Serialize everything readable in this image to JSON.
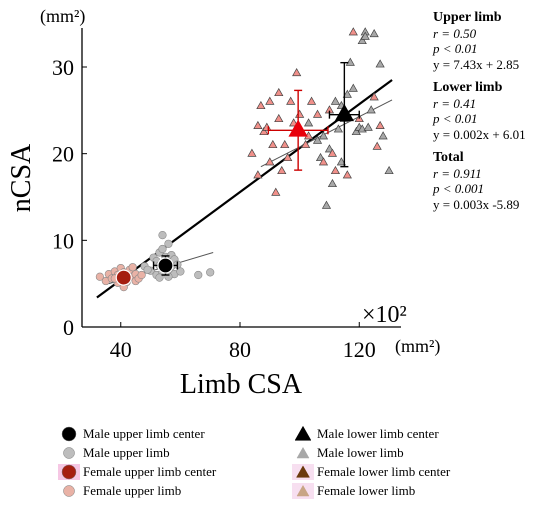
{
  "chart_data": {
    "type": "scatter",
    "title": "",
    "xlabel": "Limb CSA",
    "ylabel": "nCSA",
    "x_unit": "(mm²)",
    "y_unit": "(mm²)",
    "x_multiplier": "×10²",
    "xlim": [
      27,
      134
    ],
    "ylim": [
      0,
      34.5
    ],
    "x_ticks": [
      "40",
      "80",
      "120"
    ],
    "y_ticks": [
      "0",
      "10",
      "20",
      "30"
    ],
    "grid": false,
    "legend_position": "bottom",
    "series": [
      {
        "name": "Male upper limb",
        "marker": "circle",
        "color": "#bdbdbd",
        "points": [
          [
            48,
            7.0
          ],
          [
            50,
            6.5
          ],
          [
            51,
            8.0
          ],
          [
            52,
            6.0
          ],
          [
            52,
            7.6
          ],
          [
            53,
            8.6
          ],
          [
            53,
            7.1
          ],
          [
            54,
            6.3
          ],
          [
            54,
            9.0
          ],
          [
            55,
            7.4
          ],
          [
            55,
            8.1
          ],
          [
            56,
            6.6
          ],
          [
            56,
            9.6
          ],
          [
            57,
            7.0
          ],
          [
            57,
            8.3
          ],
          [
            58,
            6.1
          ],
          [
            58,
            7.8
          ],
          [
            59,
            7.2
          ],
          [
            60,
            6.4
          ],
          [
            54,
            10.6
          ],
          [
            53,
            5.7
          ],
          [
            49,
            6.6
          ],
          [
            66,
            6.0
          ],
          [
            70,
            6.3
          ],
          [
            56,
            5.8
          ]
        ]
      },
      {
        "name": "Female upper limb",
        "marker": "circle",
        "color": "#e9b2a6",
        "points": [
          [
            33,
            5.8
          ],
          [
            35,
            5.3
          ],
          [
            36,
            6.1
          ],
          [
            37,
            5.6
          ],
          [
            38,
            6.4
          ],
          [
            39,
            5.1
          ],
          [
            39,
            6.0
          ],
          [
            40,
            6.8
          ],
          [
            40,
            5.5
          ],
          [
            41,
            4.6
          ],
          [
            41,
            6.3
          ],
          [
            42,
            5.9
          ],
          [
            42,
            5.2
          ],
          [
            43,
            6.6
          ],
          [
            44,
            5.8
          ],
          [
            45,
            5.3
          ],
          [
            45,
            6.1
          ],
          [
            46,
            5.6
          ],
          [
            47,
            6.0
          ],
          [
            38,
            5.6
          ],
          [
            44,
            6.9
          ]
        ]
      },
      {
        "name": "Male lower limb",
        "marker": "triangle",
        "color": "#a8a8a8",
        "points": [
          [
            103,
            23.5
          ],
          [
            106,
            21.5
          ],
          [
            107,
            19.5
          ],
          [
            108,
            22.0
          ],
          [
            110,
            20.5
          ],
          [
            111,
            16.5
          ],
          [
            112,
            26.0
          ],
          [
            113,
            22.8
          ],
          [
            114,
            25.5
          ],
          [
            115,
            24.0
          ],
          [
            116,
            26.8
          ],
          [
            117,
            30.5
          ],
          [
            118,
            27.5
          ],
          [
            119,
            22.5
          ],
          [
            120,
            23.0
          ],
          [
            121,
            33.0
          ],
          [
            121,
            22.8
          ],
          [
            122,
            34.0
          ],
          [
            123,
            23.0
          ],
          [
            124,
            25.0
          ],
          [
            125,
            33.8
          ],
          [
            127,
            30.3
          ],
          [
            128,
            22.0
          ],
          [
            130,
            18.0
          ],
          [
            109,
            14.0
          ],
          [
            122,
            33.5
          ],
          [
            114,
            19.0
          ]
        ]
      },
      {
        "name": "Female lower limb",
        "marker": "triangle",
        "color": "#f0908a",
        "points": [
          [
            84,
            20.0
          ],
          [
            86,
            17.5
          ],
          [
            86,
            23.2
          ],
          [
            87,
            25.5
          ],
          [
            88,
            22.5
          ],
          [
            89,
            23.0
          ],
          [
            90,
            19.0
          ],
          [
            90,
            26.0
          ],
          [
            91,
            21.0
          ],
          [
            92,
            15.5
          ],
          [
            93,
            24.0
          ],
          [
            94,
            18.0
          ],
          [
            95,
            21.0
          ],
          [
            96,
            19.5
          ],
          [
            97,
            26.0
          ],
          [
            98,
            23.5
          ],
          [
            99,
            29.3
          ],
          [
            100,
            24.5
          ],
          [
            102,
            21.0
          ],
          [
            103,
            22.0
          ],
          [
            104,
            26.0
          ],
          [
            106,
            24.5
          ],
          [
            108,
            19.0
          ],
          [
            110,
            25.0
          ],
          [
            112,
            18.0
          ],
          [
            116,
            17.5
          ],
          [
            118,
            34.0
          ],
          [
            120,
            24.0
          ],
          [
            125,
            26.5
          ],
          [
            126,
            20.8
          ],
          [
            127,
            23.2
          ],
          [
            111,
            20.0
          ],
          [
            93,
            27.0
          ]
        ]
      }
    ],
    "centers": [
      {
        "name": "Male upper limb center",
        "marker": "circle",
        "color": "#000000",
        "x": 55,
        "y": 7.1,
        "xerr": 4,
        "yerr": 1.1,
        "err_color": "#000000"
      },
      {
        "name": "Female upper limb center",
        "marker": "circle",
        "color": "#a51e10",
        "x": 41,
        "y": 5.7,
        "xerr": 0,
        "yerr": 0,
        "err_color": "#c0392b"
      },
      {
        "name": "Male lower limb center",
        "marker": "triangle",
        "color": "#000000",
        "x": 115,
        "y": 24.5,
        "xerr": 5,
        "yerr": 6.0,
        "err_color": "#000000"
      },
      {
        "name": "Female lower limb center",
        "marker": "triangle",
        "color": "#e8000b",
        "x": 99.5,
        "y": 22.7,
        "xerr": 10,
        "yerr": 4.6,
        "err_color": "#cc0000"
      }
    ],
    "fit_lines": [
      {
        "name": "Total",
        "color": "#000000",
        "width": 2.2,
        "x": [
          32,
          131
        ],
        "y": [
          3.4,
          28.5
        ]
      },
      {
        "name": "Upper limb",
        "color": "#555555",
        "width": 1,
        "x": [
          36,
          71
        ],
        "y": [
          5.0,
          8.6
        ]
      },
      {
        "name": "Lower limb",
        "color": "#555555",
        "width": 1,
        "x": [
          87,
          131
        ],
        "y": [
          18.5,
          26.2
        ]
      }
    ],
    "legend": [
      {
        "label": "Male upper limb center",
        "marker": "circle",
        "color": "#000000",
        "size": 14,
        "halo": ""
      },
      {
        "label": "Male lower limb center",
        "marker": "triangle",
        "color": "#000000",
        "size": 14,
        "halo": ""
      },
      {
        "label": "Male upper limb",
        "marker": "circle",
        "color": "#bdbdbd",
        "size": 11,
        "halo": ""
      },
      {
        "label": "Male lower limb",
        "marker": "triangle",
        "color": "#a8a8a8",
        "size": 10,
        "halo": ""
      },
      {
        "label": "Female upper limb center",
        "marker": "circle",
        "color": "#a51e10",
        "size": 14,
        "halo": "#f6c7e4"
      },
      {
        "label": "Female lower limb center",
        "marker": "triangle",
        "color": "#6b3a0e",
        "size": 11,
        "halo": "#f7dff0"
      },
      {
        "label": "Female upper limb",
        "marker": "circle",
        "color": "#e9b2a6",
        "size": 11,
        "halo": ""
      },
      {
        "label": "Female lower limb",
        "marker": "triangle",
        "color": "#c8a585",
        "size": 10,
        "halo": "#f7dff0"
      }
    ]
  },
  "stats": {
    "upper": {
      "title": "Upper limb",
      "r": "r = 0.50",
      "p": "p < 0.01",
      "eq": "y = 7.43x + 2.85"
    },
    "lower": {
      "title": "Lower limb",
      "r": "r = 0.41",
      "p": "p < 0.01",
      "eq": "y = 0.002x + 6.01"
    },
    "total": {
      "title": "Total",
      "r": "r = 0.911",
      "p": "p < 0.001",
      "eq": "y = 0.003x -5.89"
    }
  }
}
